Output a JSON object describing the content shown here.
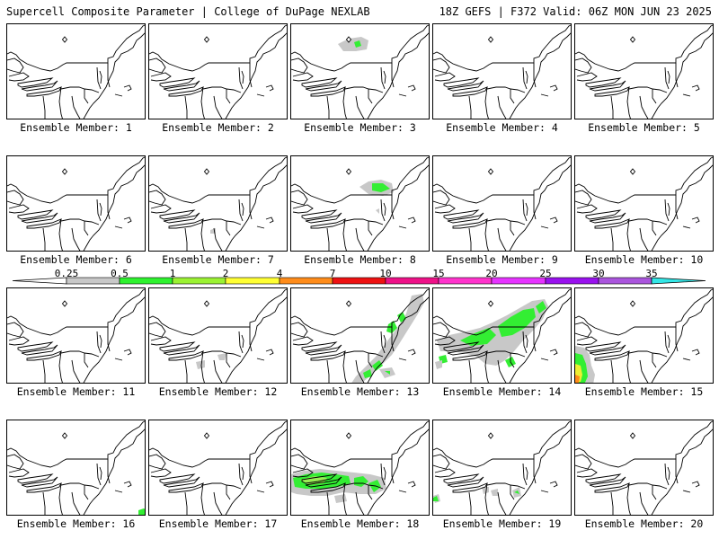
{
  "header": {
    "left": "Supercell Composite Parameter | College of DuPage NEXLAB",
    "right": "18Z GEFS | F372 Valid: 06Z MON JUN 23 2025"
  },
  "panel_label_prefix": "Ensemble Member: ",
  "members": [
    1,
    2,
    3,
    4,
    5,
    6,
    7,
    8,
    9,
    10,
    11,
    12,
    13,
    14,
    15,
    16,
    17,
    18,
    19,
    20
  ],
  "colorbar": {
    "ticks": [
      "0.25",
      "0.5",
      "1",
      "2",
      "4",
      "7",
      "10",
      "15",
      "20",
      "25",
      "30",
      "35"
    ],
    "colors": {
      "c0": "#c8c8c8",
      "c1": "#2ef22e",
      "c2": "#9bf232",
      "c3": "#ffff33",
      "c4": "#ff8c1a",
      "c5": "#ee1111",
      "c6": "#ee1188",
      "c7": "#ff33cc",
      "c8": "#e633ff",
      "c9": "#9911ee",
      "c10": "#aa55dd",
      "c11": "#33e6e6"
    }
  },
  "colors": {
    "gray": "#c8c8c8",
    "green": "#33ee33",
    "lightgreen": "#99ee55",
    "yellow": "#eeee33",
    "orange": "#ff8c1a"
  }
}
